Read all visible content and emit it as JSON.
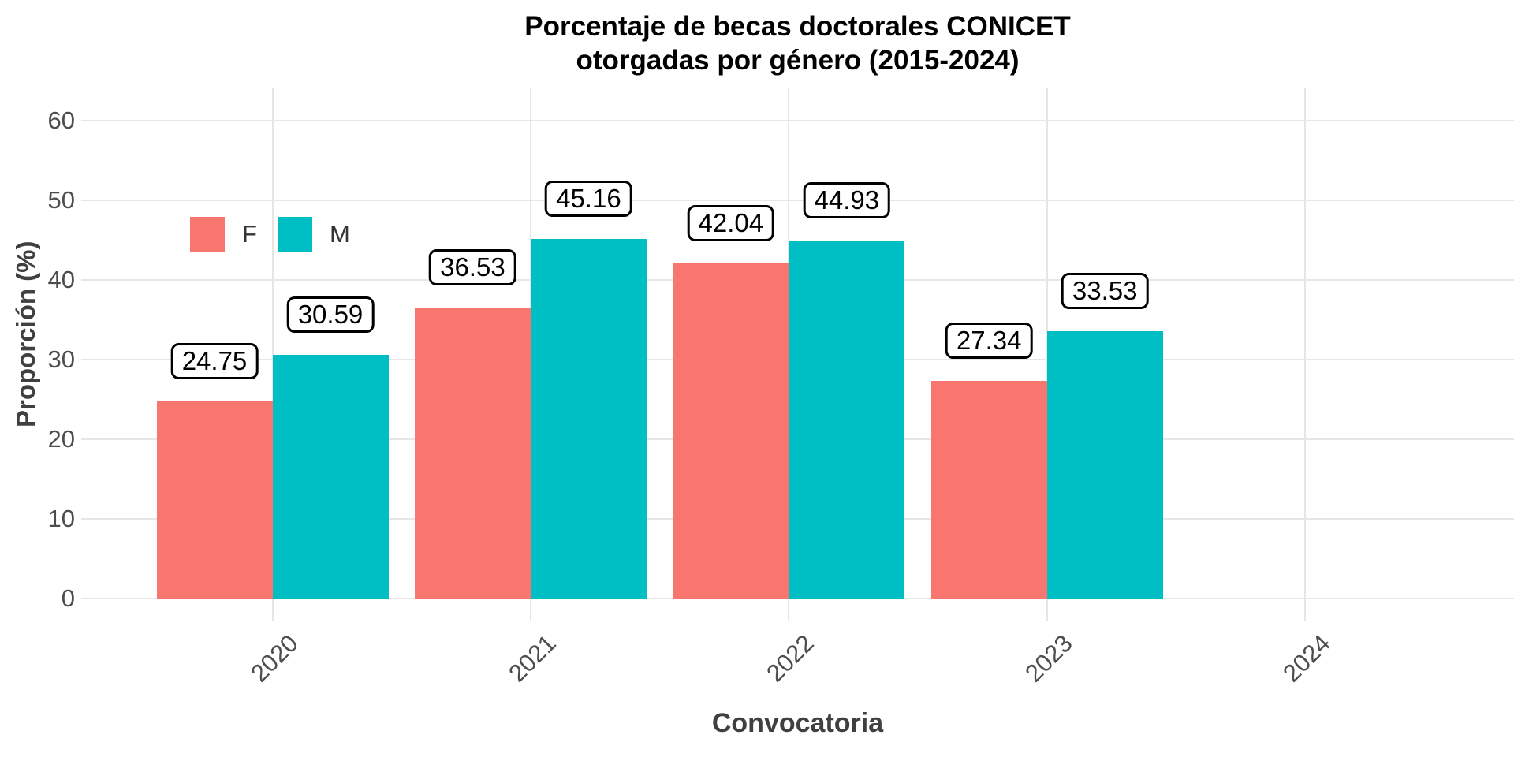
{
  "figure": {
    "title_line1": "Porcentaje de becas doctorales CONICET",
    "title_line2": "otorgadas por género (2015-2024)"
  },
  "chart_data": {
    "type": "bar",
    "title": "Porcentaje de becas doctorales CONICET otorgadas por género (2015-2024)",
    "xlabel": "Convocatoria",
    "ylabel": "Proporción (%)",
    "categories": [
      "2020",
      "2021",
      "2022",
      "2023",
      "2024"
    ],
    "series": [
      {
        "name": "F",
        "color": "#F8766D",
        "values": [
          24.75,
          36.53,
          42.04,
          27.34,
          null
        ]
      },
      {
        "name": "M",
        "color": "#00BFC4",
        "values": [
          30.59,
          45.16,
          44.93,
          33.53,
          null
        ]
      }
    ],
    "ylim": [
      0,
      60
    ],
    "yticks": [
      0,
      10,
      20,
      30,
      40,
      50,
      60
    ],
    "grid": true,
    "legend_position": "top-left-inside",
    "value_labels_boxed": true,
    "colors": {
      "grid": "#E6E6E6",
      "tick_label": "#4D4D4D",
      "axis_title": "#404040",
      "value_label_border": "#000000",
      "value_label_bg": "#FFFFFF"
    }
  }
}
